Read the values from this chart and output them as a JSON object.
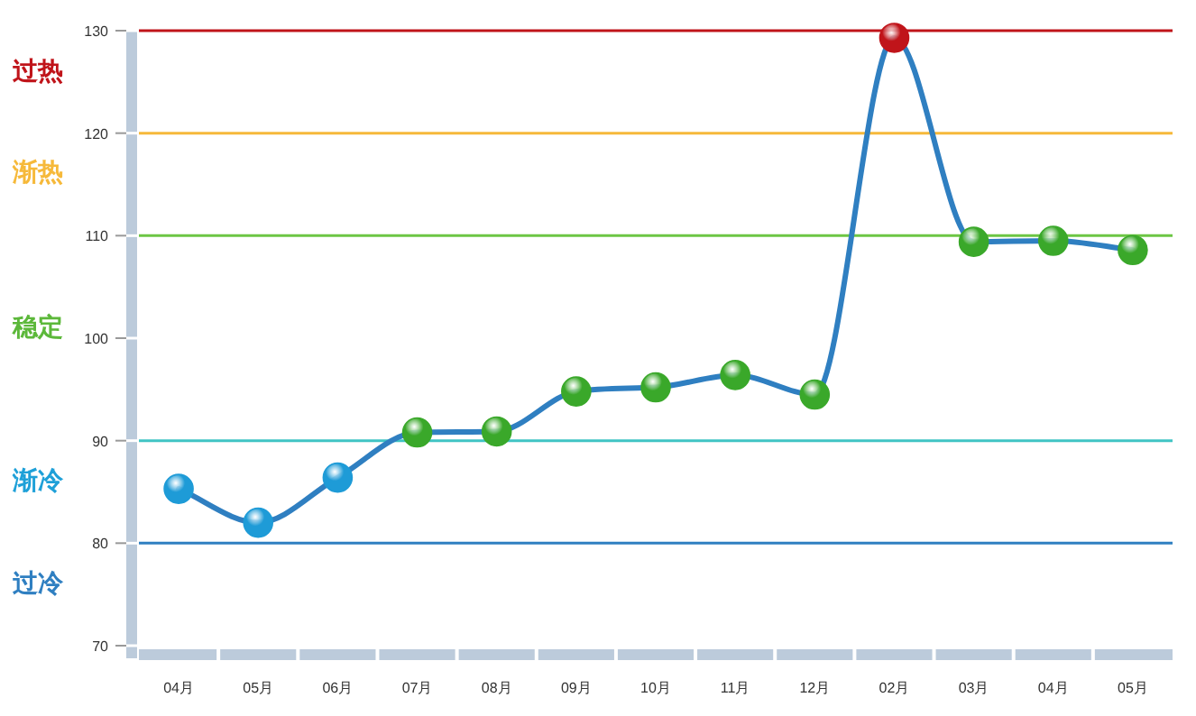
{
  "chart_data": {
    "type": "line",
    "categories": [
      "04月",
      "05月",
      "06月",
      "07月",
      "08月",
      "09月",
      "10月",
      "11月",
      "12月",
      "02月",
      "03月",
      "04月",
      "05月"
    ],
    "series": [
      {
        "color": "#2f7fc1",
        "values": [
          85.3,
          82,
          86.4,
          90.8,
          90.9,
          94.8,
          95.2,
          96.4,
          94.5,
          129.3,
          109.4,
          109.5,
          108.6
        ],
        "colors": [
          "#1e9bd7",
          "#1e9bd7",
          "#1e9bd7",
          "#3aa82a",
          "#3aa82a",
          "#3aa82a",
          "#3aa82a",
          "#3aa82a",
          "#3aa82a",
          "#c0141a",
          "#3aa82a",
          "#3aa82a",
          "#3aa82a"
        ]
      }
    ],
    "ylim": [
      70,
      130
    ],
    "yticks": [
      70,
      80,
      90,
      100,
      110,
      120,
      130
    ],
    "marker": "circle",
    "grid": false,
    "ref_lines": [
      {
        "axis": "y",
        "value": 130,
        "color": "#c0141a"
      },
      {
        "axis": "y",
        "value": 120,
        "color": "#f6b93a"
      },
      {
        "axis": "y",
        "value": 110,
        "color": "#6cc644"
      },
      {
        "axis": "y",
        "value": 90,
        "color": "#40c4c4"
      },
      {
        "axis": "y",
        "value": 80,
        "color": "#2f7fc1"
      }
    ],
    "annotations": [
      "过热",
      "渐热",
      "稳定",
      "渐冷",
      "过冷"
    ]
  }
}
